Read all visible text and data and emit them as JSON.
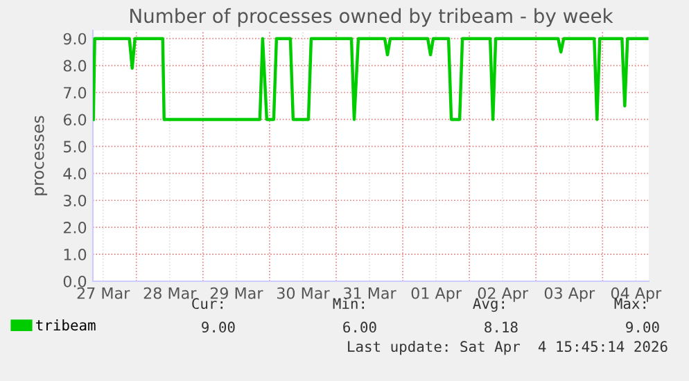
{
  "chart_data": {
    "type": "line",
    "title": "Number of processes owned by tribeam - by week",
    "ylabel": "processes",
    "x": [
      "2026-03-27T08:30",
      "2026-03-27T09:00",
      "2026-03-27T21:30",
      "2026-03-27T22:30",
      "2026-03-27T23:30",
      "2026-03-28T09:30",
      "2026-03-28T10:00",
      "2026-03-29T20:30",
      "2026-03-29T21:30",
      "2026-03-29T23:00",
      "2026-03-30T01:30",
      "2026-03-30T02:30",
      "2026-03-30T07:30",
      "2026-03-30T08:30",
      "2026-03-30T14:00",
      "2026-03-30T15:00",
      "2026-03-31T05:30",
      "2026-03-31T06:30",
      "2026-03-31T08:00",
      "2026-03-31T17:30",
      "2026-03-31T18:30",
      "2026-03-31T19:30",
      "2026-04-01T09:00",
      "2026-04-01T10:00",
      "2026-04-01T11:00",
      "2026-04-01T16:30",
      "2026-04-01T17:30",
      "2026-04-01T20:30",
      "2026-04-01T21:30",
      "2026-04-02T07:30",
      "2026-04-02T08:30",
      "2026-04-02T09:30",
      "2026-04-03T08:00",
      "2026-04-03T09:00",
      "2026-04-03T10:00",
      "2026-04-03T21:00",
      "2026-04-03T22:00",
      "2026-04-03T23:00",
      "2026-04-04T07:00",
      "2026-04-04T08:00",
      "2026-04-04T09:00",
      "2026-04-04T16:00"
    ],
    "series": [
      {
        "name": "tribeam",
        "color": "#00cc00",
        "values": [
          6,
          9,
          9,
          7.9,
          9,
          9,
          6,
          6,
          9,
          6,
          6,
          9,
          9,
          6,
          6,
          9,
          9,
          6,
          9,
          9,
          8.4,
          9,
          9,
          8.4,
          9,
          9,
          6,
          6,
          9,
          9,
          6,
          9,
          9,
          8.5,
          9,
          9,
          6,
          9,
          9,
          6.5,
          9,
          9
        ]
      }
    ],
    "xlim": [
      "2026-03-27T08:20",
      "2026-04-04T16:40"
    ],
    "xticks": [
      {
        "value": "2026-03-27T12:00",
        "label": "27 Mar"
      },
      {
        "value": "2026-03-28T00:00",
        "label": null
      },
      {
        "value": "2026-03-28T12:00",
        "label": "28 Mar"
      },
      {
        "value": "2026-03-29T00:00",
        "label": null
      },
      {
        "value": "2026-03-29T12:00",
        "label": "29 Mar"
      },
      {
        "value": "2026-03-30T00:00",
        "label": null
      },
      {
        "value": "2026-03-30T12:00",
        "label": "30 Mar"
      },
      {
        "value": "2026-03-31T00:00",
        "label": null
      },
      {
        "value": "2026-03-31T12:00",
        "label": "31 Mar"
      },
      {
        "value": "2026-04-01T00:00",
        "label": null
      },
      {
        "value": "2026-04-01T12:00",
        "label": "01 Apr"
      },
      {
        "value": "2026-04-02T00:00",
        "label": null
      },
      {
        "value": "2026-04-02T12:00",
        "label": "02 Apr"
      },
      {
        "value": "2026-04-03T00:00",
        "label": null
      },
      {
        "value": "2026-04-03T12:00",
        "label": "03 Apr"
      },
      {
        "value": "2026-04-04T00:00",
        "label": null
      },
      {
        "value": "2026-04-04T12:00",
        "label": "04 Apr"
      }
    ],
    "ylim": [
      0,
      9.3
    ],
    "yticks": [
      {
        "value": 0,
        "label": "0.0"
      },
      {
        "value": 1,
        "label": "1.0"
      },
      {
        "value": 2,
        "label": "2.0"
      },
      {
        "value": 3,
        "label": "3.0"
      },
      {
        "value": 4,
        "label": "4.0"
      },
      {
        "value": 5,
        "label": "5.0"
      },
      {
        "value": 6,
        "label": "6.0"
      },
      {
        "value": 7,
        "label": "7.0"
      },
      {
        "value": 8,
        "label": "8.0"
      },
      {
        "value": 9,
        "label": "9.0"
      }
    ],
    "grid": true,
    "legend": "bottom left",
    "marker": "none",
    "line_style": "solid",
    "annotations": [
      "Cur:",
      "Min:",
      "Avg:",
      "Max:",
      "9.00",
      "6.00",
      "8.18",
      "9.00",
      "Last update: Sat Apr  4 15:45:14 2026"
    ]
  }
}
